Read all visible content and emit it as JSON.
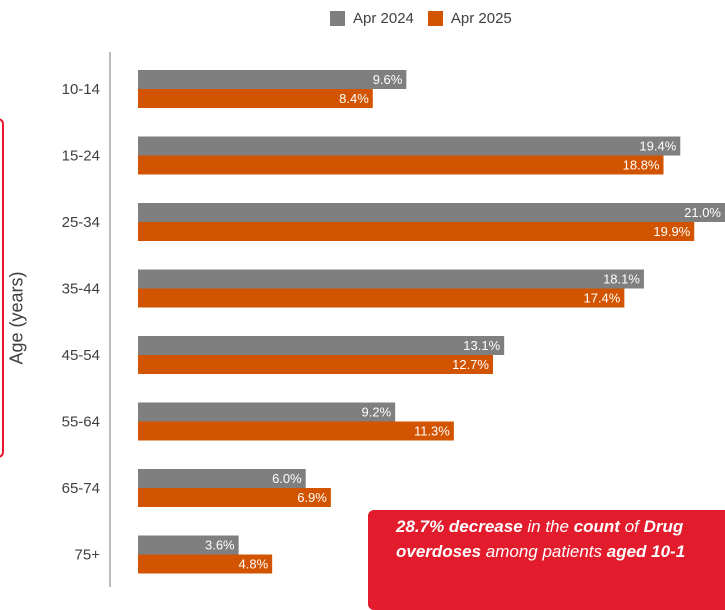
{
  "chart_data": {
    "type": "bar",
    "orientation": "horizontal",
    "categories": [
      "10-14",
      "15-24",
      "25-34",
      "35-44",
      "45-54",
      "55-64",
      "65-74",
      "75+"
    ],
    "series": [
      {
        "name": "Apr 2024",
        "color": "#7f7f7f",
        "values": [
          9.6,
          19.4,
          21.0,
          18.1,
          13.1,
          9.2,
          6.0,
          3.6
        ],
        "labels": [
          "9.6%",
          "19.4%",
          "21.0%",
          "18.1%",
          "13.1%",
          "9.2%",
          "6.0%",
          "3.6%"
        ]
      },
      {
        "name": "Apr 2025",
        "color": "#d35400",
        "values": [
          8.4,
          18.8,
          19.9,
          17.4,
          12.7,
          11.3,
          6.9,
          4.8
        ],
        "labels": [
          "8.4%",
          "18.8%",
          "19.9%",
          "17.4%",
          "12.7%",
          "11.3%",
          "6.9%",
          "4.8%"
        ]
      }
    ],
    "ylabel": "Age (years)",
    "xlim": [
      0,
      21
    ],
    "legend": "top"
  },
  "legend": {
    "items": [
      {
        "label": "Apr 2024",
        "color": "#7f7f7f"
      },
      {
        "label": "Apr 2025",
        "color": "#d35400"
      }
    ]
  },
  "callout": {
    "part1": "28.7% decrease",
    "part2": " in the ",
    "part3": "count",
    "part4": " of ",
    "part5": "Drug",
    "part6": "overdoses",
    "part7": " among patients ",
    "part8": "aged 10-1",
    "color": "#e21c2c"
  }
}
